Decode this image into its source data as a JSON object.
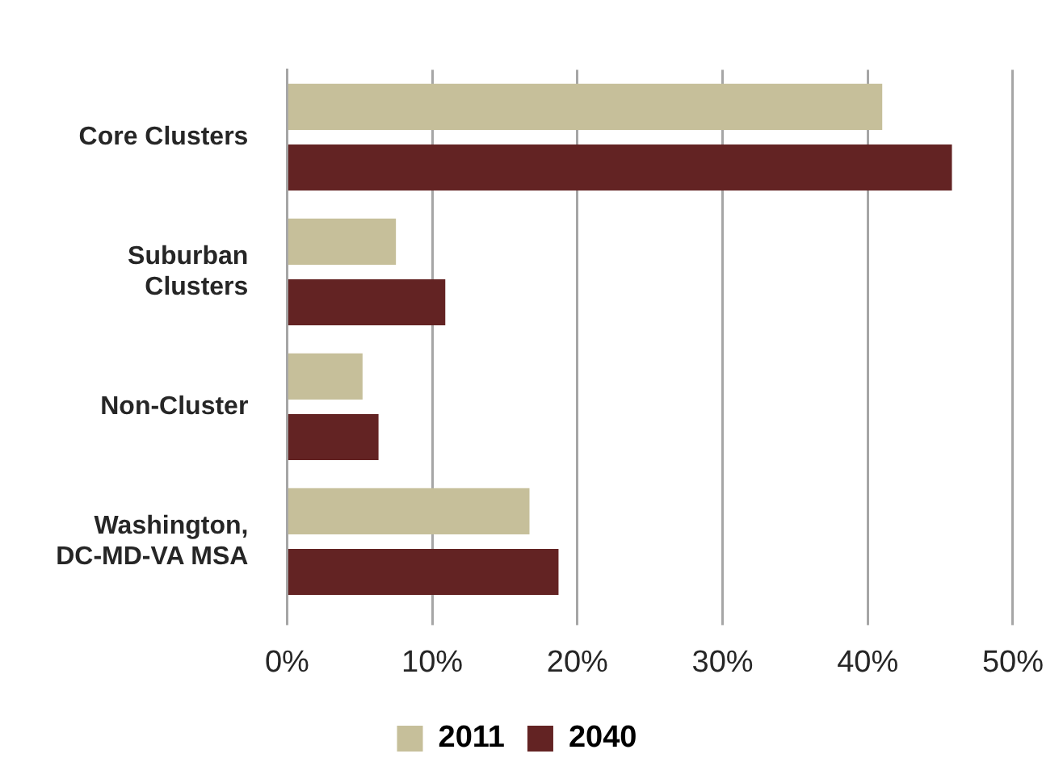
{
  "chart_data": {
    "type": "bar",
    "orientation": "horizontal",
    "categories": [
      "Core Clusters",
      "Suburban Clusters",
      "Non-Cluster",
      "Washington, DC-MD-VA MSA"
    ],
    "series": [
      {
        "name": "2011",
        "color": "#c6bf9a",
        "values": [
          41,
          7.5,
          5.2,
          16.7
        ]
      },
      {
        "name": "2040",
        "color": "#632323",
        "values": [
          45.8,
          10.9,
          6.3,
          18.7
        ]
      }
    ],
    "xlim": [
      0,
      50
    ],
    "xticks": [
      {
        "value": 0,
        "label": "0%"
      },
      {
        "value": 10,
        "label": "10%"
      },
      {
        "value": 20,
        "label": "20%"
      },
      {
        "value": 30,
        "label": "30%"
      },
      {
        "value": 40,
        "label": "40%"
      },
      {
        "value": 50,
        "label": "50%"
      }
    ],
    "grid": "x",
    "legend": "bottom"
  }
}
